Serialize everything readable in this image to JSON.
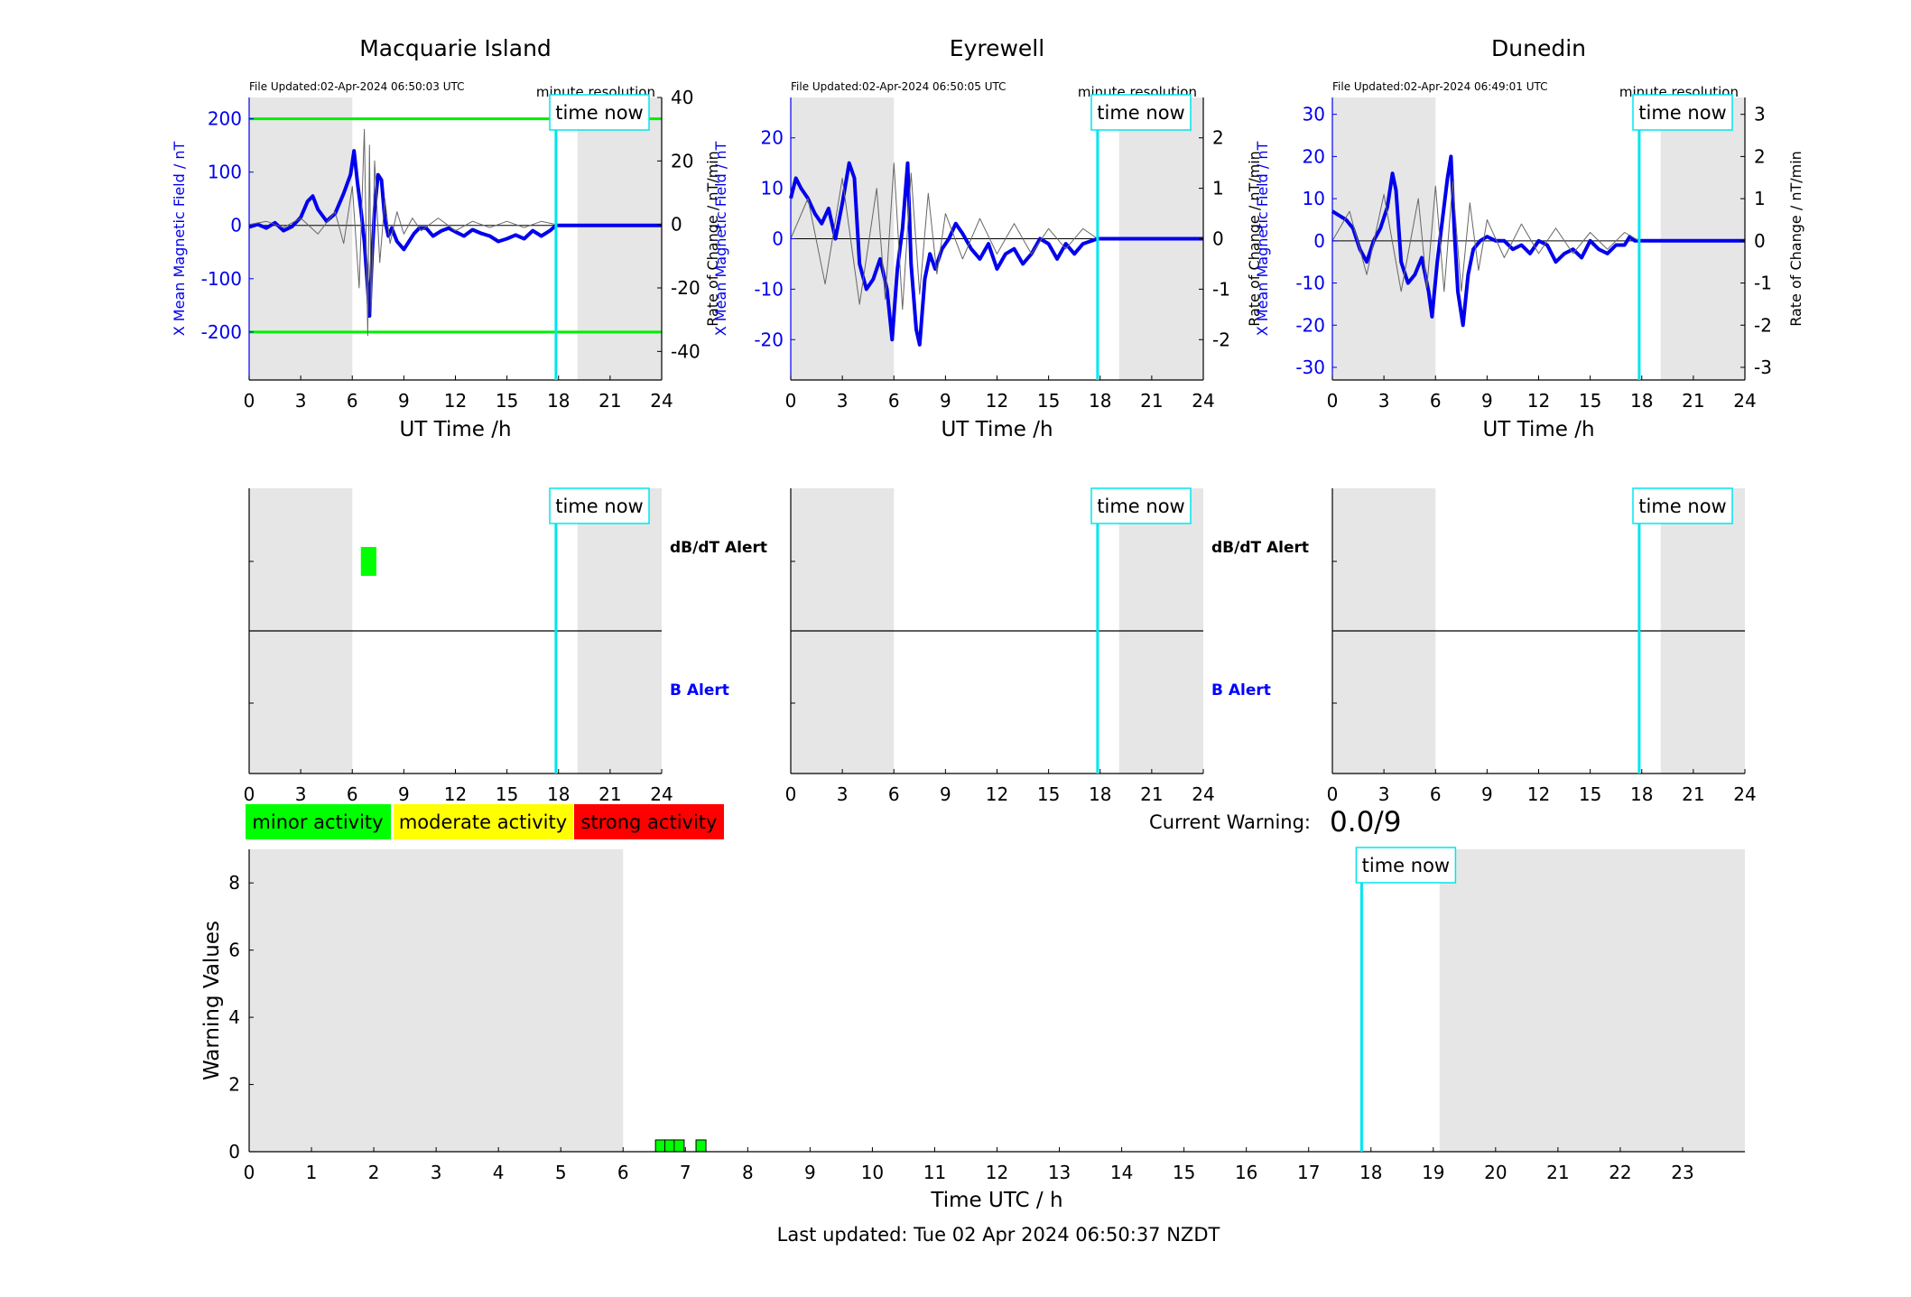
{
  "colors": {
    "shade": "#e6e6e6",
    "field": "#0000ee",
    "roc": "#666666",
    "threshold": "#00ee00",
    "time_now": "#00e5ee",
    "minor": "#00ff00",
    "moderate": "#ffff00",
    "strong": "#ff0000",
    "b_alert": "#0000ff"
  },
  "common": {
    "xlabel": "UT Time /h",
    "resolution": "minute resolution",
    "time_now_label": "time now",
    "left_ylabel": "X Mean Magnetic Field / nT",
    "right_ylabel": "Rate of Change / nT/min",
    "dbdt_label": "dB/dT Alert",
    "b_label": "B Alert"
  },
  "shade_periods": [
    [
      0,
      6
    ],
    [
      19.1,
      24
    ]
  ],
  "time_now_h": 17.85,
  "stations": [
    {
      "name": "Macquarie Island",
      "file_updated": "File Updated:02-Apr-2024 06:50:03 UTC",
      "show_labels": true,
      "dbdt_alert_intervals": [
        [
          6.5,
          7.4
        ]
      ]
    },
    {
      "name": "Eyrewell",
      "file_updated": "File Updated:02-Apr-2024 06:50:05 UTC",
      "show_labels": true,
      "dbdt_alert_intervals": []
    },
    {
      "name": "Dunedin",
      "file_updated": "File Updated:02-Apr-2024 06:49:01 UTC",
      "show_labels": false,
      "dbdt_alert_intervals": []
    }
  ],
  "legend": {
    "minor": "minor activity",
    "moderate": "moderate activity",
    "strong": "strong activity"
  },
  "current_warning": {
    "label": "Current Warning:",
    "value": "0.0/9"
  },
  "footer": "Last updated: Tue 02 Apr 2024 06:50:37 NZDT",
  "chart_data": [
    {
      "type": "line",
      "title": "Macquarie Island",
      "xlabel": "UT Time /h",
      "ylabel": "X Mean Magnetic Field / nT",
      "ylabel_right": "Rate of Change / nT/min",
      "xlim": [
        0,
        24
      ],
      "ylim": [
        -290,
        240
      ],
      "ylim_right": [
        -49,
        40
      ],
      "xticks": [
        0,
        3,
        6,
        9,
        12,
        15,
        18,
        21,
        24
      ],
      "yticks": [
        -200,
        -100,
        0,
        100,
        200
      ],
      "yticks_right": [
        -40,
        -20,
        0,
        20,
        40
      ],
      "thresholds": [
        200,
        -200
      ],
      "series": [
        {
          "axis": "left",
          "x": [
            0,
            0.5,
            1,
            1.5,
            2,
            2.5,
            3,
            3.4,
            3.7,
            4,
            4.5,
            5,
            5.5,
            5.9,
            6.1,
            6.3,
            6.5,
            6.7,
            6.9,
            7.0,
            7.15,
            7.3,
            7.5,
            7.7,
            7.9,
            8.1,
            8.3,
            8.6,
            9,
            9.3,
            9.6,
            9.9,
            10.3,
            10.7,
            11.2,
            11.6,
            12,
            12.5,
            13,
            13.5,
            14,
            14.5,
            15,
            15.5,
            16,
            16.5,
            17,
            17.5,
            17.85,
            18.5,
            20,
            22,
            24
          ],
          "y": [
            -3,
            2,
            -5,
            5,
            -10,
            -2,
            15,
            45,
            55,
            30,
            8,
            22,
            60,
            95,
            140,
            80,
            30,
            -30,
            -120,
            -170,
            -60,
            30,
            95,
            85,
            10,
            -20,
            -5,
            -30,
            -45,
            -30,
            -15,
            -5,
            -5,
            -20,
            -10,
            -5,
            -12,
            -20,
            -8,
            -15,
            -20,
            -30,
            -25,
            -18,
            -25,
            -10,
            -20,
            -10,
            0,
            0,
            0,
            0,
            0
          ]
        },
        {
          "axis": "right",
          "x": [
            0,
            1,
            2,
            3,
            4,
            5,
            5.5,
            6,
            6.4,
            6.7,
            6.9,
            7.0,
            7.1,
            7.3,
            7.6,
            7.9,
            8.2,
            8.6,
            9,
            9.5,
            10,
            11,
            12,
            13,
            14,
            15,
            16,
            17,
            17.85
          ],
          "y": [
            0,
            1,
            -1,
            2,
            -3,
            4,
            -6,
            12,
            -20,
            30,
            -35,
            25,
            -28,
            20,
            -12,
            8,
            -6,
            4,
            -3,
            2,
            -2,
            2,
            -2,
            1,
            -1,
            1,
            -1,
            1,
            0
          ]
        }
      ]
    },
    {
      "type": "line",
      "title": "Eyrewell",
      "xlabel": "UT Time /h",
      "ylabel": "X Mean Magnetic Field / nT",
      "ylabel_right": "Rate of Change / nT/min",
      "xlim": [
        0,
        24
      ],
      "ylim": [
        -28,
        28
      ],
      "ylim_right": [
        -2.8,
        2.8
      ],
      "xticks": [
        0,
        3,
        6,
        9,
        12,
        15,
        18,
        21,
        24
      ],
      "yticks": [
        -20,
        -10,
        0,
        10,
        20
      ],
      "yticks_right": [
        -2,
        -1,
        0,
        1,
        2
      ],
      "series": [
        {
          "axis": "left",
          "x": [
            0,
            0.3,
            0.6,
            1,
            1.4,
            1.8,
            2.2,
            2.6,
            3.0,
            3.4,
            3.7,
            4.0,
            4.4,
            4.8,
            5.2,
            5.6,
            5.9,
            6.2,
            6.5,
            6.8,
            7.0,
            7.3,
            7.5,
            7.8,
            8.1,
            8.4,
            8.8,
            9.2,
            9.6,
            10.0,
            10.5,
            11,
            11.5,
            12,
            12.5,
            13,
            13.5,
            14,
            14.5,
            15,
            15.5,
            16,
            16.5,
            17,
            17.85,
            18.5,
            20,
            22,
            24
          ],
          "y": [
            8,
            12,
            10,
            8,
            5,
            3,
            6,
            0,
            7,
            15,
            12,
            -5,
            -10,
            -8,
            -4,
            -10,
            -20,
            -6,
            2,
            15,
            -5,
            -18,
            -21,
            -8,
            -3,
            -6,
            -2,
            0,
            3,
            1,
            -2,
            -4,
            -1,
            -6,
            -3,
            -2,
            -5,
            -3,
            0,
            -1,
            -4,
            -1,
            -3,
            -1,
            0,
            0,
            0,
            0,
            0
          ]
        },
        {
          "axis": "right",
          "x": [
            0,
            1,
            2,
            3,
            4,
            5,
            5.5,
            6,
            6.5,
            7,
            7.5,
            8,
            8.5,
            9,
            10,
            11,
            12,
            13,
            14,
            15,
            16,
            17,
            17.85
          ],
          "y": [
            0,
            0.8,
            -0.9,
            1.2,
            -1.3,
            1.0,
            -1.2,
            1.5,
            -1.4,
            1.3,
            -1.1,
            0.9,
            -0.7,
            0.5,
            -0.4,
            0.4,
            -0.3,
            0.3,
            -0.3,
            0.2,
            -0.2,
            0.2,
            0
          ]
        }
      ]
    },
    {
      "type": "line",
      "title": "Dunedin",
      "xlabel": "UT Time /h",
      "ylabel": "X Mean Magnetic Field / nT",
      "ylabel_right": "Rate of Change / nT/min",
      "xlim": [
        0,
        24
      ],
      "ylim": [
        -33,
        34
      ],
      "ylim_right": [
        -3.3,
        3.4
      ],
      "xticks": [
        0,
        3,
        6,
        9,
        12,
        15,
        18,
        21,
        24
      ],
      "yticks": [
        -30,
        -20,
        -10,
        0,
        10,
        20,
        30
      ],
      "yticks_right": [
        -3,
        -2,
        -1,
        0,
        1,
        2,
        3
      ],
      "series": [
        {
          "axis": "left",
          "x": [
            0,
            0.4,
            0.8,
            1.2,
            1.6,
            2.0,
            2.4,
            2.8,
            3.2,
            3.5,
            3.7,
            4.0,
            4.4,
            4.8,
            5.2,
            5.6,
            5.8,
            6.1,
            6.4,
            6.7,
            6.9,
            7.1,
            7.3,
            7.6,
            7.9,
            8.2,
            8.6,
            9.0,
            9.5,
            10,
            10.5,
            11,
            11.5,
            12,
            12.5,
            13,
            13.5,
            14,
            14.5,
            15,
            15.5,
            16,
            16.5,
            17,
            17.3,
            17.6,
            17.85,
            18.5,
            20,
            22,
            24
          ],
          "y": [
            7,
            6,
            5,
            3,
            -2,
            -5,
            0,
            3,
            8,
            16,
            12,
            -5,
            -10,
            -8,
            -4,
            -12,
            -18,
            -5,
            5,
            15,
            20,
            2,
            -12,
            -20,
            -8,
            -2,
            0,
            1,
            0,
            0,
            -2,
            -1,
            -3,
            0,
            -1,
            -5,
            -3,
            -2,
            -4,
            0,
            -2,
            -3,
            -1,
            -1,
            1,
            0,
            0,
            0,
            0,
            0,
            0
          ]
        },
        {
          "axis": "right",
          "x": [
            0,
            1,
            2,
            3,
            4,
            5,
            5.5,
            6,
            6.5,
            7,
            7.5,
            8,
            8.5,
            9,
            10,
            11,
            12,
            13,
            14,
            15,
            16,
            17,
            17.85
          ],
          "y": [
            0,
            0.7,
            -0.8,
            1.1,
            -1.2,
            1.0,
            -1.1,
            1.3,
            -1.2,
            1.4,
            -1.2,
            0.9,
            -0.7,
            0.5,
            -0.4,
            0.4,
            -0.3,
            0.3,
            -0.3,
            0.2,
            -0.2,
            0.2,
            0
          ]
        }
      ]
    },
    {
      "type": "bar",
      "title": "",
      "xlabel": "Time UTC / h",
      "ylabel": "Warning Values",
      "xlim": [
        0,
        24
      ],
      "ylim": [
        0,
        9
      ],
      "xticks": [
        0,
        1,
        2,
        3,
        4,
        5,
        6,
        7,
        8,
        9,
        10,
        11,
        12,
        13,
        14,
        15,
        16,
        17,
        18,
        19,
        20,
        21,
        22,
        23
      ],
      "yticks": [
        0,
        2,
        4,
        6,
        8
      ],
      "bar_width_h": 0.16,
      "x": [
        6.6,
        6.75,
        6.9,
        7.25
      ],
      "values": [
        0.35,
        0.35,
        0.35,
        0.35
      ],
      "value_category": [
        "minor",
        "minor",
        "minor",
        "minor"
      ]
    }
  ]
}
